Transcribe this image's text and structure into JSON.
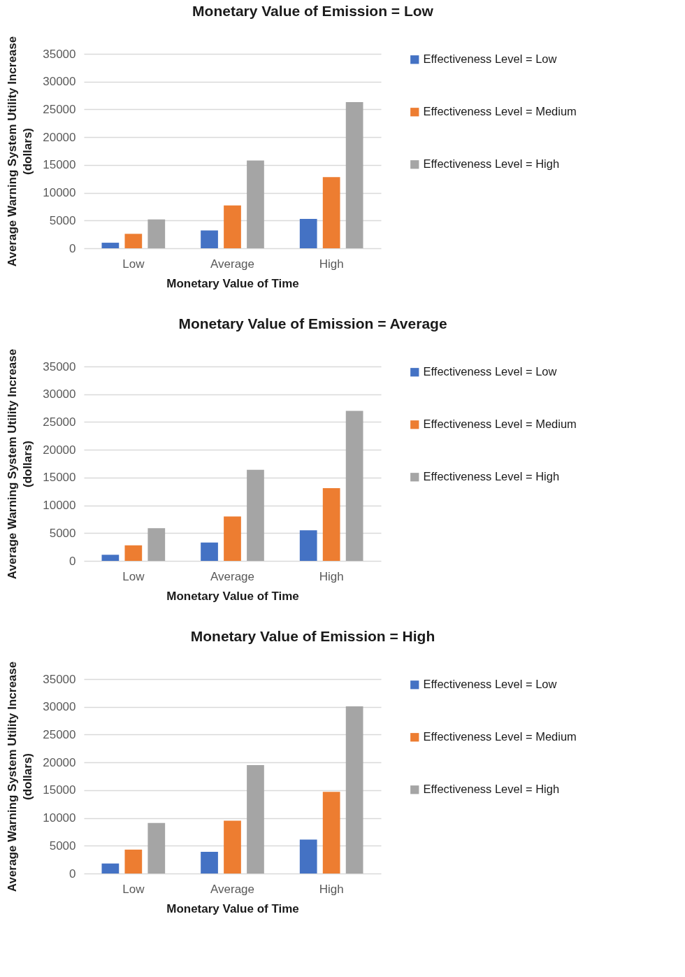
{
  "chart_data": [
    {
      "type": "bar",
      "title": "Monetary Value of Emission = Low",
      "xlabel": "Monetary Value of Time",
      "ylabel": "Average Warning System Utility Increase (dollars)",
      "categories": [
        "Low",
        "Average",
        "High"
      ],
      "ylim": [
        0,
        35000
      ],
      "yticks": [
        0,
        5000,
        10000,
        15000,
        20000,
        25000,
        30000,
        35000
      ],
      "grid": "y",
      "legend": "right",
      "series": [
        {
          "name": "Effectiveness Level = Low",
          "color": "#4472c4",
          "values": [
            1000,
            3200,
            5300
          ]
        },
        {
          "name": "Effectiveness Level = Medium",
          "color": "#ed7d31",
          "values": [
            2600,
            7700,
            12800
          ]
        },
        {
          "name": "Effectiveness Level = High",
          "color": "#a5a5a5",
          "values": [
            5200,
            15800,
            26300
          ]
        }
      ]
    },
    {
      "type": "bar",
      "title": "Monetary Value of Emission = Average",
      "xlabel": "Monetary Value of Time",
      "ylabel": "Average Warning System Utility Increase (dollars)",
      "categories": [
        "Low",
        "Average",
        "High"
      ],
      "ylim": [
        0,
        35000
      ],
      "yticks": [
        0,
        5000,
        10000,
        15000,
        20000,
        25000,
        30000,
        35000
      ],
      "grid": "y",
      "legend": "right",
      "series": [
        {
          "name": "Effectiveness Level = Low",
          "color": "#4472c4",
          "values": [
            1100,
            3300,
            5500
          ]
        },
        {
          "name": "Effectiveness Level = Medium",
          "color": "#ed7d31",
          "values": [
            2800,
            8000,
            13100
          ]
        },
        {
          "name": "Effectiveness Level = High",
          "color": "#a5a5a5",
          "values": [
            5900,
            16400,
            27000
          ]
        }
      ]
    },
    {
      "type": "bar",
      "title": "Monetary Value of Emission = High",
      "xlabel": "Monetary Value of Time",
      "ylabel": "Average Warning System Utility Increase (dollars)",
      "categories": [
        "Low",
        "Average",
        "High"
      ],
      "ylim": [
        0,
        35000
      ],
      "yticks": [
        0,
        5000,
        10000,
        15000,
        20000,
        25000,
        30000,
        35000
      ],
      "grid": "y",
      "legend": "right",
      "series": [
        {
          "name": "Effectiveness Level = Low",
          "color": "#4472c4",
          "values": [
            1800,
            3900,
            6100
          ]
        },
        {
          "name": "Effectiveness Level = Medium",
          "color": "#ed7d31",
          "values": [
            4300,
            9500,
            14700
          ]
        },
        {
          "name": "Effectiveness Level = High",
          "color": "#a5a5a5",
          "values": [
            9100,
            19500,
            30100
          ]
        }
      ]
    }
  ]
}
